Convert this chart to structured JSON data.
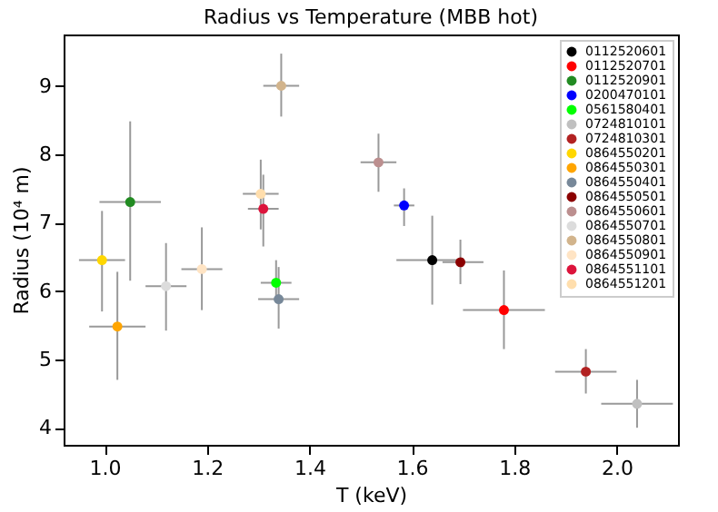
{
  "chart_data": {
    "type": "scatter",
    "title": "Radius vs Temperature (MBB hot)",
    "xlabel": "T (keV)",
    "ylabel": "Radius (10⁴ m)",
    "xlim": [
      0.92,
      2.12
    ],
    "ylim": [
      3.75,
      9.75
    ],
    "xticks": [
      {
        "value": 1,
        "label": "1.0"
      },
      1.2,
      1.4,
      1.6,
      1.8,
      {
        "value": 2,
        "label": "2.0"
      }
    ],
    "yticks": [
      4,
      5,
      6,
      7,
      8,
      9
    ],
    "grid": false,
    "legend": "top right",
    "marker": "circle",
    "series": [
      {
        "name": "0112520601",
        "color": "#000000",
        "x": [
          1.64
        ],
        "values": [
          6.45
        ],
        "errors": [
          [
            5.8,
            7.1
          ]
        ],
        "xerrors": [
          [
            1.57,
            1.7
          ]
        ]
      },
      {
        "name": "0112520701",
        "color": "#ff0000",
        "x": [
          1.78
        ],
        "values": [
          5.72
        ],
        "errors": [
          [
            5.15,
            6.3
          ]
        ],
        "xerrors": [
          [
            1.7,
            1.86
          ]
        ]
      },
      {
        "name": "0112520901",
        "color": "#228b22",
        "x": [
          1.05
        ],
        "values": [
          7.3
        ],
        "errors": [
          [
            6.15,
            8.48
          ]
        ],
        "xerrors": [
          [
            0.99,
            1.11
          ]
        ]
      },
      {
        "name": "0200470101",
        "color": "#0000ff",
        "x": [
          1.585
        ],
        "values": [
          7.25
        ],
        "errors": [
          [
            6.95,
            7.5
          ]
        ],
        "xerrors": [
          [
            1.565,
            1.605
          ]
        ]
      },
      {
        "name": "0561580401",
        "color": "#00ff00",
        "x": [
          1.335
        ],
        "values": [
          6.12
        ],
        "errors": [
          [
            5.85,
            6.45
          ]
        ],
        "xerrors": [
          [
            1.305,
            1.365
          ]
        ]
      },
      {
        "name": "0724810101",
        "color": "#c0c0c0",
        "x": [
          2.04
        ],
        "values": [
          4.35
        ],
        "errors": [
          [
            4.0,
            4.7
          ]
        ],
        "xerrors": [
          [
            1.97,
            2.11
          ]
        ]
      },
      {
        "name": "0724810301",
        "color": "#b22222",
        "x": [
          1.94
        ],
        "values": [
          4.82
        ],
        "errors": [
          [
            4.5,
            5.15
          ]
        ],
        "xerrors": [
          [
            1.88,
            2.0
          ]
        ]
      },
      {
        "name": "0864550201",
        "color": "#ffd700",
        "x": [
          0.995
        ],
        "values": [
          6.45
        ],
        "errors": [
          [
            5.7,
            7.17
          ]
        ],
        "xerrors": [
          [
            0.95,
            1.04
          ]
        ]
      },
      {
        "name": "0864550301",
        "color": "#ffa500",
        "x": [
          1.025
        ],
        "values": [
          5.48
        ],
        "errors": [
          [
            4.7,
            6.28
          ]
        ],
        "xerrors": [
          [
            0.97,
            1.08
          ]
        ]
      },
      {
        "name": "0864550401",
        "color": "#778899",
        "x": [
          1.34
        ],
        "values": [
          5.88
        ],
        "errors": [
          [
            5.45,
            6.35
          ]
        ],
        "xerrors": [
          [
            1.3,
            1.38
          ]
        ]
      },
      {
        "name": "0864550501",
        "color": "#8b0000",
        "x": [
          1.695
        ],
        "values": [
          6.42
        ],
        "errors": [
          [
            6.1,
            6.75
          ]
        ],
        "xerrors": [
          [
            1.66,
            1.74
          ]
        ]
      },
      {
        "name": "0864550601",
        "color": "#bc8f8f",
        "x": [
          1.535
        ],
        "values": [
          7.88
        ],
        "errors": [
          [
            7.45,
            8.3
          ]
        ],
        "xerrors": [
          [
            1.5,
            1.57
          ]
        ]
      },
      {
        "name": "0864550701",
        "color": "#dcdcdc",
        "x": [
          1.12
        ],
        "values": [
          6.07
        ],
        "errors": [
          [
            5.42,
            6.7
          ]
        ],
        "xerrors": [
          [
            1.08,
            1.16
          ]
        ]
      },
      {
        "name": "0864550801",
        "color": "#d2b48c",
        "x": [
          1.345
        ],
        "values": [
          9.0
        ],
        "errors": [
          [
            8.55,
            9.47
          ]
        ],
        "xerrors": [
          [
            1.31,
            1.38
          ]
        ]
      },
      {
        "name": "0864550901",
        "color": "#ffe4c4",
        "x": [
          1.19
        ],
        "values": [
          6.32
        ],
        "errors": [
          [
            5.72,
            6.93
          ]
        ],
        "xerrors": [
          [
            1.15,
            1.23
          ]
        ]
      },
      {
        "name": "0864551101",
        "color": "#dc143c",
        "x": [
          1.31
        ],
        "values": [
          7.2
        ],
        "errors": [
          [
            6.65,
            7.7
          ]
        ],
        "xerrors": [
          [
            1.28,
            1.34
          ]
        ]
      },
      {
        "name": "0864551201",
        "color": "#ffdead",
        "x": [
          1.305
        ],
        "values": [
          7.42
        ],
        "errors": [
          [
            6.9,
            7.92
          ]
        ],
        "xerrors": [
          [
            1.27,
            1.34
          ]
        ]
      }
    ]
  }
}
